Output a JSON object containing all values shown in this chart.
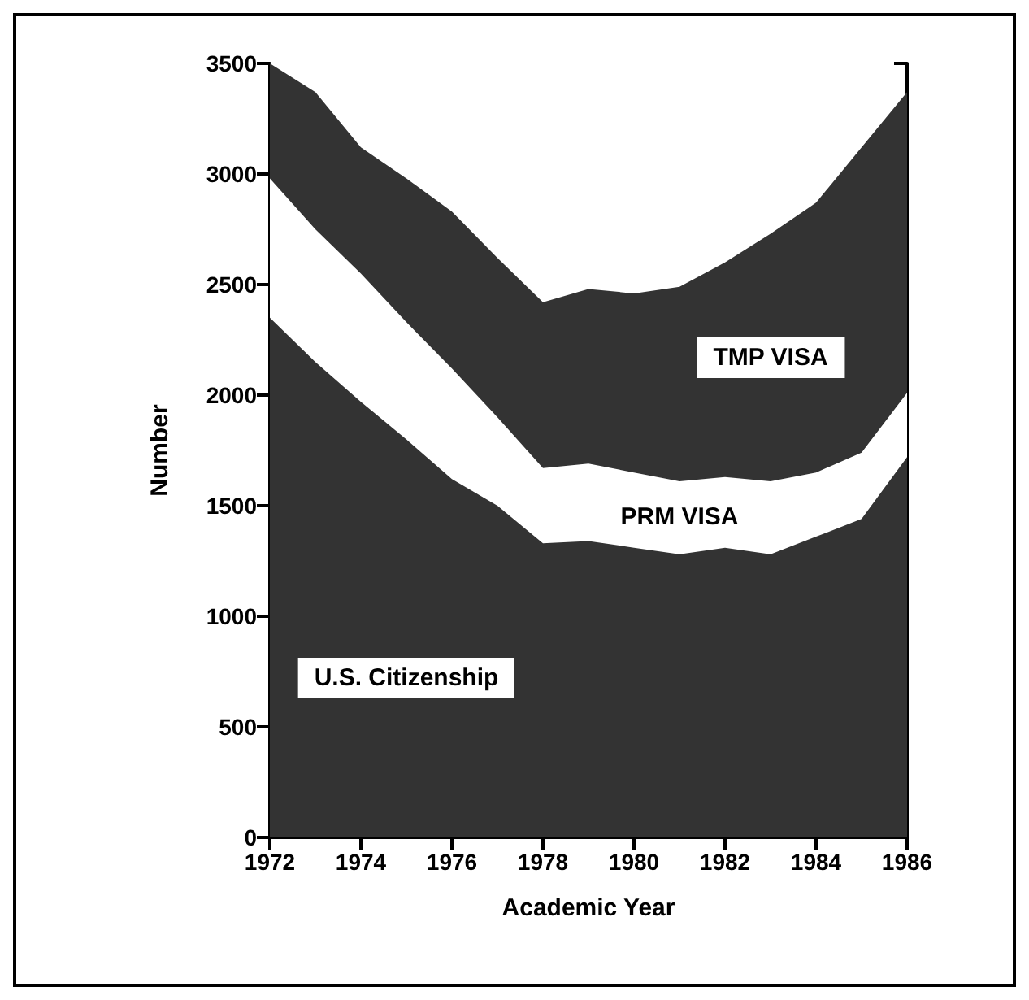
{
  "chart_data": {
    "type": "area",
    "xlabel": "Academic Year",
    "ylabel": "Number",
    "stacked": true,
    "x": [
      1972,
      1973,
      1974,
      1975,
      1976,
      1977,
      1978,
      1979,
      1980,
      1981,
      1982,
      1983,
      1984,
      1985,
      1986
    ],
    "series": [
      {
        "name": "U.S. Citizenship",
        "color": "#333333",
        "values": [
          2350,
          2150,
          1970,
          1800,
          1620,
          1500,
          1330,
          1340,
          1310,
          1280,
          1310,
          1280,
          1360,
          1440,
          1720
        ]
      },
      {
        "name": "PRM VISA",
        "color": "#ffffff",
        "values": [
          630,
          600,
          580,
          530,
          500,
          400,
          340,
          350,
          340,
          330,
          320,
          330,
          290,
          300,
          290
        ]
      },
      {
        "name": "TMP VISA",
        "color": "#333333",
        "values": [
          520,
          620,
          570,
          650,
          710,
          720,
          750,
          790,
          810,
          880,
          970,
          1120,
          1220,
          1380,
          1360
        ]
      }
    ],
    "xlim": [
      1972,
      1986
    ],
    "xticks": [
      1972,
      1974,
      1976,
      1978,
      1980,
      1982,
      1984,
      1986
    ],
    "ylim": [
      0,
      3500
    ],
    "yticks": [
      0,
      500,
      1000,
      1500,
      2000,
      2500,
      3000,
      3500
    ],
    "grid": false,
    "legend": false
  }
}
